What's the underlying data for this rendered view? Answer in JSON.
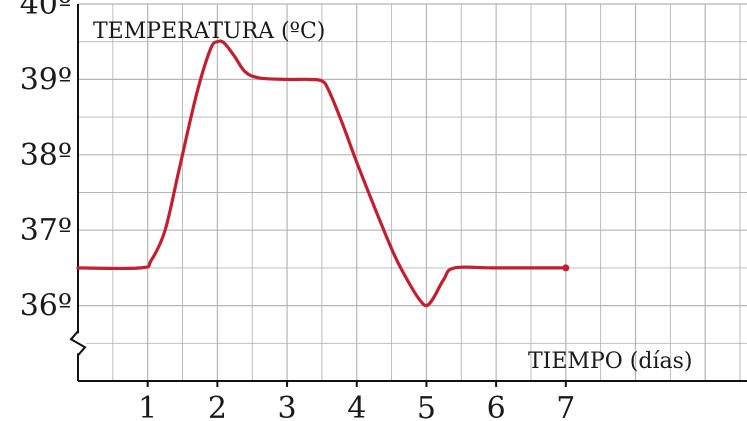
{
  "chart_data": {
    "type": "line",
    "ylabel": "TEMPERATURA (ºC)",
    "xlabel": "TIEMPO (días)",
    "x_ticks": [
      "1",
      "2",
      "3",
      "4",
      "5",
      "6",
      "7"
    ],
    "y_ticks": [
      "36º",
      "37º",
      "38º",
      "39º",
      "40º"
    ],
    "xlim": [
      0,
      9.6
    ],
    "ylim": [
      35,
      40
    ],
    "y_axis_break": true,
    "grid": true,
    "series": [
      {
        "color": "#c0202f",
        "points": [
          [
            0,
            36.5
          ],
          [
            0.9,
            36.5
          ],
          [
            1.05,
            36.6
          ],
          [
            1.25,
            37.0
          ],
          [
            1.45,
            37.8
          ],
          [
            1.7,
            38.8
          ],
          [
            1.9,
            39.4
          ],
          [
            2.0,
            39.5
          ],
          [
            2.1,
            39.48
          ],
          [
            2.25,
            39.3
          ],
          [
            2.4,
            39.1
          ],
          [
            2.6,
            39.02
          ],
          [
            3.0,
            39.0
          ],
          [
            3.3,
            39.0
          ],
          [
            3.5,
            38.98
          ],
          [
            3.6,
            38.85
          ],
          [
            3.8,
            38.4
          ],
          [
            4.0,
            37.9
          ],
          [
            4.3,
            37.2
          ],
          [
            4.55,
            36.65
          ],
          [
            4.75,
            36.3
          ],
          [
            4.9,
            36.08
          ],
          [
            5.0,
            36.0
          ],
          [
            5.1,
            36.1
          ],
          [
            5.25,
            36.35
          ],
          [
            5.4,
            36.5
          ],
          [
            6.0,
            36.5
          ],
          [
            7.0,
            36.5
          ]
        ]
      }
    ]
  }
}
